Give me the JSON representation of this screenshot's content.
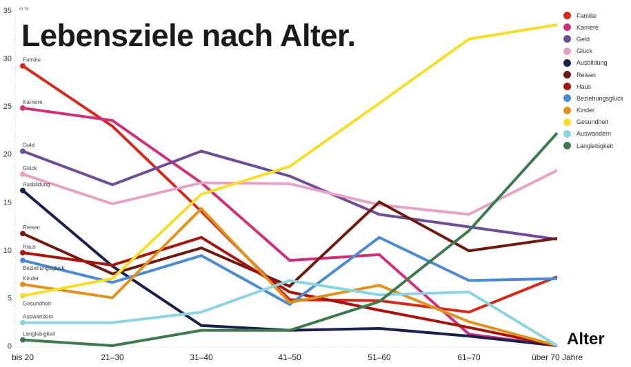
{
  "chart_data": {
    "type": "line",
    "title": "Lebensziele nach Alter.",
    "unit_label": "in %",
    "xlabel": "Alter",
    "ylabel": "",
    "categories": [
      "bis 20",
      "21–30",
      "31–40",
      "41–50",
      "51–60",
      "61–70",
      "über 70 Jahre"
    ],
    "ylim": [
      0,
      35
    ],
    "yticks": [
      0,
      5,
      10,
      15,
      20,
      25,
      30,
      35
    ],
    "grid": false,
    "legend_position": "top-right",
    "series": [
      {
        "name": "Familie",
        "color": "#d42a1c",
        "values": [
          29.2,
          22.9,
          14.0,
          4.8,
          4.7,
          3.5,
          7.2
        ]
      },
      {
        "name": "Karriere",
        "color": "#d0307a",
        "values": [
          24.8,
          23.5,
          17.0,
          8.9,
          9.5,
          1.2,
          0
        ]
      },
      {
        "name": "Geld",
        "color": "#6e4f97",
        "values": [
          20.3,
          16.8,
          20.3,
          17.7,
          13.7,
          12.4,
          11.1
        ]
      },
      {
        "name": "Glück",
        "color": "#e6a3c6",
        "values": [
          17.9,
          14.8,
          17.0,
          16.9,
          14.7,
          13.7,
          18.3
        ]
      },
      {
        "name": "Ausbildung",
        "color": "#1a1f4d",
        "values": [
          16.2,
          8.3,
          2.1,
          1.6,
          1.8,
          1.0,
          0
        ]
      },
      {
        "name": "Reisen",
        "color": "#6e1a10",
        "values": [
          11.7,
          7.5,
          10.2,
          6.2,
          15.0,
          9.9,
          11.2
        ]
      },
      {
        "name": "Haus",
        "color": "#a8150f",
        "values": [
          9.7,
          8.4,
          11.3,
          5.6,
          3.7,
          1.9,
          0
        ]
      },
      {
        "name": "Beziehungsglück",
        "color": "#4a8bd2",
        "values": [
          8.9,
          6.6,
          9.4,
          4.3,
          11.3,
          6.8,
          7.0
        ]
      },
      {
        "name": "Kinder",
        "color": "#e0921e",
        "values": [
          6.4,
          5.0,
          14.3,
          4.5,
          6.3,
          2.5,
          0
        ]
      },
      {
        "name": "Gesundheit",
        "color": "#f5de2a",
        "values": [
          5.2,
          7.0,
          15.8,
          18.7,
          25.3,
          32.0,
          33.5
        ]
      },
      {
        "name": "Auswandern",
        "color": "#8ed4de",
        "values": [
          2.4,
          2.4,
          3.5,
          6.8,
          5.3,
          5.6,
          0
        ]
      },
      {
        "name": "Langlebigkeit",
        "color": "#3e7a4e",
        "values": [
          0.6,
          0.0,
          1.6,
          1.6,
          4.6,
          12.0,
          22.2
        ]
      }
    ]
  }
}
